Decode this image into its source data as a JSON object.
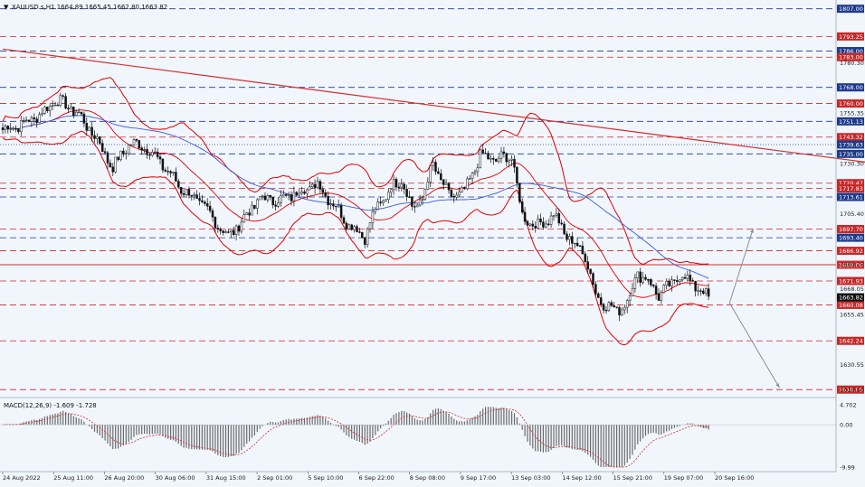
{
  "header": {
    "symbol_info": "XAUUSD.s,H1  1664.89 1665.45 1662.80 1663.82"
  },
  "macd": {
    "label": "MACD(12,26,9) -1.609 -1.728",
    "ticks": [
      "4.702",
      "0.00",
      "-9.99"
    ]
  },
  "chart_data": {
    "type": "candlestick",
    "symbol": "XAUUSD.s",
    "timeframe": "H1",
    "price_axis": {
      "min": 1615,
      "max": 1810,
      "tick_labels": [
        "1780.30",
        "1755.35",
        "1730.30",
        "1705.40",
        "1680.25",
        "1668.05",
        "1655.45",
        "1630.55",
        "1618.10"
      ]
    },
    "x_labels": [
      "24 Aug 2022",
      "25 Aug 11:00",
      "26 Aug 20:00",
      "30 Aug 06:00",
      "31 Aug 15:00",
      "2 Sep 01:00",
      "5 Sep 10:00",
      "6 Sep 22:00",
      "8 Sep 08:00",
      "9 Sep 17:00",
      "13 Sep 03:00",
      "14 Sep 12:00",
      "15 Sep 21:00",
      "19 Sep 07:00",
      "20 Sep 16:00"
    ],
    "horizontal_levels": [
      {
        "label": "1807.00",
        "value": 1807.0,
        "color": "#1e3a8a",
        "style": "dash"
      },
      {
        "label": "1793.25",
        "value": 1793.25,
        "color": "#c62828",
        "style": "dash"
      },
      {
        "label": "1786.00",
        "value": 1786.0,
        "color": "#1e3a8a",
        "style": "dash"
      },
      {
        "label": "1783.00",
        "value": 1783.0,
        "color": "#c62828",
        "style": "dash"
      },
      {
        "label": "1768.00",
        "value": 1768.0,
        "color": "#1e3a8a",
        "style": "dash"
      },
      {
        "label": "1760.00",
        "value": 1760.0,
        "color": "#c62828",
        "style": "dash"
      },
      {
        "label": "1751.13",
        "value": 1751.13,
        "color": "#1e3a8a",
        "style": "dash"
      },
      {
        "label": "1743.32",
        "value": 1743.32,
        "color": "#c62828",
        "style": "dash"
      },
      {
        "label": "1739.63",
        "value": 1739.63,
        "color": "#1e3a8a",
        "style": "dot"
      },
      {
        "label": "1735.00",
        "value": 1735.0,
        "color": "#1e3a8a",
        "style": "dash"
      },
      {
        "label": "1720.47",
        "value": 1720.47,
        "color": "#c62828",
        "style": "dash"
      },
      {
        "label": "1717.83",
        "value": 1717.83,
        "color": "#c62828",
        "style": "dash"
      },
      {
        "label": "1713.61",
        "value": 1713.61,
        "color": "#1e3a8a",
        "style": "dash"
      },
      {
        "label": "1697.70",
        "value": 1697.7,
        "color": "#c62828",
        "style": "dash"
      },
      {
        "label": "1693.40",
        "value": 1693.4,
        "color": "#1e3a8a",
        "style": "dash"
      },
      {
        "label": "1686.92",
        "value": 1686.92,
        "color": "#c62828",
        "style": "dash"
      },
      {
        "label": "1680.00",
        "value": 1680.0,
        "color": "#d32f2f",
        "style": "solid"
      },
      {
        "label": "1671.93",
        "value": 1671.93,
        "color": "#c62828",
        "style": "dash"
      },
      {
        "label": "1660.08",
        "value": 1660.08,
        "color": "#c62828",
        "style": "dash"
      },
      {
        "label": "1642.24",
        "value": 1642.24,
        "color": "#c62828",
        "style": "dash"
      },
      {
        "label": "1618.05",
        "value": 1618.05,
        "color": "#c62828",
        "style": "dash"
      }
    ],
    "current_price": {
      "label": "1663.82",
      "value": 1663.82
    },
    "trendline": {
      "from": {
        "bar": 0,
        "price": 1787.0
      },
      "to": {
        "bar": 340,
        "price": 1729.0
      },
      "color": "#d32f2f"
    },
    "projection_arrows": [
      {
        "from": {
          "bar": 277,
          "price": 1661.0
        },
        "to": {
          "bar": 286,
          "price": 1698.0
        }
      },
      {
        "from": {
          "bar": 277,
          "price": 1661.0
        },
        "to": {
          "bar": 296,
          "price": 1619.0
        }
      }
    ],
    "price_path": {
      "bar_count": 270,
      "anchors": [
        [
          0,
          1747
        ],
        [
          8,
          1750
        ],
        [
          16,
          1756
        ],
        [
          20,
          1762
        ],
        [
          28,
          1756
        ],
        [
          36,
          1742
        ],
        [
          42,
          1728
        ],
        [
          48,
          1740
        ],
        [
          54,
          1739
        ],
        [
          60,
          1731
        ],
        [
          68,
          1718
        ],
        [
          76,
          1710
        ],
        [
          80,
          1703
        ],
        [
          86,
          1694
        ],
        [
          92,
          1703
        ],
        [
          98,
          1713
        ],
        [
          106,
          1712
        ],
        [
          114,
          1717
        ],
        [
          120,
          1720
        ],
        [
          126,
          1710
        ],
        [
          132,
          1700
        ],
        [
          138,
          1694
        ],
        [
          142,
          1707
        ],
        [
          148,
          1718
        ],
        [
          152,
          1723
        ],
        [
          156,
          1708
        ],
        [
          160,
          1713
        ],
        [
          164,
          1730
        ],
        [
          170,
          1714
        ],
        [
          176,
          1716
        ],
        [
          182,
          1734
        ],
        [
          188,
          1732
        ],
        [
          194,
          1734
        ],
        [
          198,
          1704
        ],
        [
          204,
          1699
        ],
        [
          210,
          1705
        ],
        [
          214,
          1696
        ],
        [
          218,
          1690
        ],
        [
          222,
          1685
        ],
        [
          226,
          1665
        ],
        [
          230,
          1660
        ],
        [
          234,
          1657
        ],
        [
          238,
          1662
        ],
        [
          242,
          1676
        ],
        [
          246,
          1672
        ],
        [
          250,
          1665
        ],
        [
          254,
          1669
        ],
        [
          258,
          1675
        ],
        [
          262,
          1672
        ],
        [
          266,
          1667
        ],
        [
          269,
          1664
        ]
      ]
    },
    "bands_visible": true,
    "moving_average_color": "#3b5bdb",
    "grid": false,
    "colors": {
      "candle": "#111111",
      "band": "#e00000",
      "axis_text": "#222222",
      "background": "#f0f6fc"
    }
  }
}
